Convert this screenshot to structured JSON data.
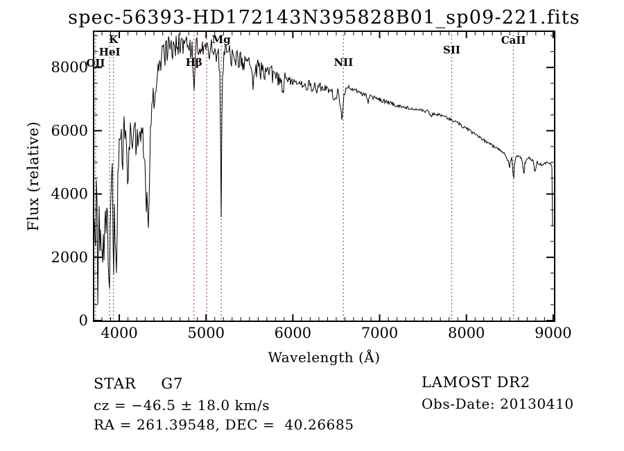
{
  "chart_data": {
    "type": "line",
    "title": "spec-56393-HD172143N395828B01_sp09-221.fits",
    "xlabel": "Wavelength (Å)",
    "ylabel": "Flux (relative)",
    "xlim": [
      3704,
      9017
    ],
    "ylim": [
      0,
      9145
    ],
    "x_ticks": [
      4000,
      5000,
      6000,
      7000,
      8000,
      9000
    ],
    "y_ticks": [
      0,
      2000,
      4000,
      6000,
      8000
    ],
    "x_minor_step": 100,
    "y_minor_step": 500,
    "grid": false,
    "legend": "none",
    "line_color": "#000000",
    "marker_line_color": "#993333",
    "spectral_lines": [
      {
        "label": "OII",
        "wavelength": 3727,
        "label_y": 92
      },
      {
        "label": "HeI",
        "wavelength": 3889,
        "label_y": 76
      },
      {
        "label": "K",
        "wavelength": 3933,
        "label_y": 58
      },
      {
        "label": "Hβ",
        "wavelength": 4861,
        "label_y": 91
      },
      {
        "label": "",
        "wavelength": 5007,
        "label_y": 0
      },
      {
        "label": "Mg",
        "wavelength": 5175,
        "label_y": 58
      },
      {
        "label": "NII",
        "wavelength": 6583,
        "label_y": 91
      },
      {
        "label": "SII",
        "wavelength": 7830,
        "label_y": 73
      },
      {
        "label": "CaII",
        "wavelength": 8542,
        "label_y": 59
      }
    ],
    "seed": 20130410,
    "envelope": [
      [
        3704,
        2200
      ],
      [
        3712,
        3800
      ],
      [
        3720,
        2600
      ],
      [
        3727,
        1200
      ],
      [
        3734,
        3900
      ],
      [
        3741,
        4600
      ],
      [
        3748,
        1800
      ],
      [
        3755,
        600
      ],
      [
        3762,
        2600
      ],
      [
        3770,
        3500
      ],
      [
        3778,
        2800
      ],
      [
        3786,
        2200
      ],
      [
        3794,
        3200
      ],
      [
        3802,
        2600
      ],
      [
        3810,
        2200
      ],
      [
        3818,
        3000
      ],
      [
        3826,
        1700
      ],
      [
        3834,
        2500
      ],
      [
        3842,
        3000
      ],
      [
        3850,
        2700
      ],
      [
        3858,
        3200
      ],
      [
        3866,
        2500
      ],
      [
        3874,
        1800
      ],
      [
        3882,
        1100
      ],
      [
        3889,
        800
      ],
      [
        3896,
        2400
      ],
      [
        3904,
        3300
      ],
      [
        3912,
        4000
      ],
      [
        3920,
        4400
      ],
      [
        3926,
        3200
      ],
      [
        3933,
        700
      ],
      [
        3940,
        2600
      ],
      [
        3948,
        3700
      ],
      [
        3955,
        2600
      ],
      [
        3962,
        1600
      ],
      [
        3968,
        900
      ],
      [
        3975,
        2600
      ],
      [
        3982,
        3900
      ],
      [
        3990,
        4700
      ],
      [
        4000,
        5400
      ],
      [
        4010,
        6000
      ],
      [
        4025,
        5600
      ],
      [
        4040,
        5100
      ],
      [
        4055,
        6200
      ],
      [
        4070,
        5800
      ],
      [
        4085,
        5200
      ],
      [
        4102,
        3900
      ],
      [
        4115,
        5500
      ],
      [
        4130,
        6100
      ],
      [
        4145,
        5400
      ],
      [
        4160,
        5900
      ],
      [
        4175,
        6200
      ],
      [
        4190,
        5600
      ],
      [
        4205,
        6000
      ],
      [
        4220,
        5500
      ],
      [
        4235,
        6100
      ],
      [
        4250,
        5700
      ],
      [
        4265,
        6200
      ],
      [
        4280,
        5300
      ],
      [
        4295,
        4700
      ],
      [
        4310,
        3700
      ],
      [
        4322,
        4400
      ],
      [
        4334,
        2800
      ],
      [
        4347,
        4600
      ],
      [
        4360,
        6000
      ],
      [
        4375,
        6800
      ],
      [
        4390,
        7100
      ],
      [
        4405,
        6700
      ],
      [
        4420,
        7200
      ],
      [
        4435,
        7600
      ],
      [
        4450,
        8000
      ],
      [
        4465,
        8300
      ],
      [
        4480,
        7900
      ],
      [
        4495,
        8400
      ],
      [
        4510,
        8600
      ],
      [
        4525,
        8200
      ],
      [
        4540,
        8700
      ],
      [
        4555,
        8400
      ],
      [
        4570,
        8800
      ],
      [
        4585,
        8500
      ],
      [
        4600,
        8900
      ],
      [
        4615,
        8400
      ],
      [
        4630,
        8800
      ],
      [
        4645,
        8600
      ],
      [
        4660,
        8950
      ],
      [
        4675,
        8600
      ],
      [
        4690,
        8900
      ],
      [
        4705,
        8700
      ],
      [
        4720,
        9000
      ],
      [
        4735,
        8700
      ],
      [
        4750,
        8900
      ],
      [
        4765,
        8600
      ],
      [
        4780,
        8850
      ],
      [
        4795,
        8500
      ],
      [
        4810,
        8800
      ],
      [
        4825,
        8400
      ],
      [
        4840,
        8600
      ],
      [
        4852,
        8000
      ],
      [
        4861,
        7000
      ],
      [
        4872,
        8100
      ],
      [
        4885,
        8600
      ],
      [
        4900,
        8800
      ],
      [
        4915,
        8400
      ],
      [
        4930,
        8700
      ],
      [
        4945,
        8500
      ],
      [
        4960,
        8750
      ],
      [
        4975,
        8500
      ],
      [
        4990,
        8800
      ],
      [
        5007,
        8500
      ],
      [
        5022,
        8800
      ],
      [
        5040,
        8400
      ],
      [
        5060,
        8700
      ],
      [
        5080,
        8300
      ],
      [
        5100,
        8600
      ],
      [
        5120,
        8100
      ],
      [
        5140,
        8450
      ],
      [
        5158,
        7800
      ],
      [
        5167,
        5500
      ],
      [
        5175,
        3000
      ],
      [
        5183,
        6800
      ],
      [
        5195,
        8000
      ],
      [
        5210,
        8400
      ],
      [
        5230,
        8600
      ],
      [
        5250,
        8300
      ],
      [
        5270,
        8550
      ],
      [
        5290,
        8250
      ],
      [
        5310,
        8500
      ],
      [
        5330,
        8150
      ],
      [
        5350,
        8400
      ],
      [
        5375,
        8100
      ],
      [
        5400,
        8350
      ],
      [
        5425,
        8000
      ],
      [
        5450,
        8250
      ],
      [
        5475,
        7950
      ],
      [
        5500,
        8300
      ],
      [
        5520,
        7900
      ],
      [
        5540,
        7400
      ],
      [
        5560,
        8100
      ],
      [
        5580,
        7800
      ],
      [
        5600,
        8150
      ],
      [
        5625,
        7850
      ],
      [
        5650,
        8050
      ],
      [
        5675,
        7750
      ],
      [
        5700,
        8000
      ],
      [
        5725,
        7700
      ],
      [
        5750,
        7950
      ],
      [
        5775,
        7600
      ],
      [
        5800,
        7850
      ],
      [
        5825,
        7550
      ],
      [
        5850,
        7750
      ],
      [
        5875,
        7450
      ],
      [
        5893,
        7100
      ],
      [
        5910,
        7650
      ],
      [
        5935,
        7500
      ],
      [
        5960,
        7650
      ],
      [
        5985,
        7500
      ],
      [
        6010,
        7620
      ],
      [
        6040,
        7480
      ],
      [
        6070,
        7600
      ],
      [
        6100,
        7450
      ],
      [
        6130,
        7550
      ],
      [
        6160,
        7400
      ],
      [
        6190,
        7500
      ],
      [
        6220,
        7350
      ],
      [
        6250,
        7450
      ],
      [
        6280,
        7300
      ],
      [
        6310,
        7420
      ],
      [
        6340,
        7280
      ],
      [
        6370,
        7380
      ],
      [
        6400,
        7250
      ],
      [
        6430,
        7350
      ],
      [
        6460,
        7150
      ],
      [
        6490,
        6950
      ],
      [
        6510,
        7250
      ],
      [
        6530,
        7150
      ],
      [
        6545,
        6900
      ],
      [
        6563,
        6300
      ],
      [
        6580,
        6900
      ],
      [
        6600,
        7300
      ],
      [
        6630,
        7400
      ],
      [
        6660,
        7350
      ],
      [
        6700,
        7300
      ],
      [
        6740,
        7250
      ],
      [
        6780,
        7200
      ],
      [
        6820,
        7150
      ],
      [
        6850,
        7100
      ],
      [
        6867,
        6900
      ],
      [
        6885,
        7080
      ],
      [
        6920,
        7050
      ],
      [
        6960,
        7010
      ],
      [
        7000,
        6980
      ],
      [
        7040,
        6950
      ],
      [
        7080,
        6920
      ],
      [
        7124,
        6880
      ],
      [
        7160,
        6840
      ],
      [
        7186,
        6700
      ],
      [
        7215,
        6800
      ],
      [
        7250,
        6780
      ],
      [
        7290,
        6750
      ],
      [
        7330,
        6720
      ],
      [
        7370,
        6700
      ],
      [
        7410,
        6680
      ],
      [
        7450,
        6660
      ],
      [
        7490,
        6640
      ],
      [
        7530,
        6620
      ],
      [
        7570,
        6590
      ],
      [
        7594,
        6450
      ],
      [
        7620,
        6550
      ],
      [
        7660,
        6520
      ],
      [
        7700,
        6480
      ],
      [
        7740,
        6440
      ],
      [
        7780,
        6400
      ],
      [
        7830,
        6340
      ],
      [
        7880,
        6270
      ],
      [
        7930,
        6190
      ],
      [
        7980,
        6100
      ],
      [
        8030,
        6010
      ],
      [
        8080,
        5920
      ],
      [
        8130,
        5830
      ],
      [
        8180,
        5740
      ],
      [
        8230,
        5650
      ],
      [
        8280,
        5560
      ],
      [
        8330,
        5470
      ],
      [
        8380,
        5390
      ],
      [
        8430,
        5290
      ],
      [
        8460,
        5200
      ],
      [
        8490,
        4950
      ],
      [
        8498,
        4800
      ],
      [
        8508,
        5080
      ],
      [
        8525,
        5150
      ],
      [
        8535,
        4800
      ],
      [
        8542,
        4250
      ],
      [
        8552,
        4900
      ],
      [
        8570,
        5150
      ],
      [
        8595,
        5200
      ],
      [
        8620,
        5150
      ],
      [
        8640,
        5100
      ],
      [
        8655,
        4850
      ],
      [
        8662,
        4530
      ],
      [
        8672,
        4950
      ],
      [
        8695,
        5100
      ],
      [
        8720,
        5150
      ],
      [
        8745,
        5100
      ],
      [
        8770,
        5050
      ],
      [
        8790,
        4650
      ],
      [
        8810,
        5000
      ],
      [
        8840,
        4950
      ],
      [
        8870,
        4920
      ],
      [
        8900,
        4960
      ],
      [
        8930,
        5000
      ],
      [
        8960,
        4980
      ],
      [
        8980,
        4940
      ],
      [
        8990,
        4870
      ],
      [
        8994,
        2400
      ],
      [
        8997,
        30
      ],
      [
        9017,
        20
      ]
    ],
    "noise_segments": [
      [
        3704,
        3995,
        850
      ],
      [
        3995,
        4360,
        420
      ],
      [
        4360,
        4760,
        300
      ],
      [
        4760,
        5910,
        270
      ],
      [
        5910,
        6620,
        140
      ],
      [
        6620,
        7200,
        70
      ],
      [
        7200,
        8380,
        50
      ],
      [
        8380,
        9000,
        45
      ],
      [
        9000,
        9018,
        10
      ]
    ]
  },
  "annotations": {
    "object_class": "STAR",
    "subclass": "G7",
    "survey": "LAMOST DR2",
    "cz_line": "cz = −46.5 ± 18.0 km/s",
    "obs_date_line": "Obs-Date: 20130410",
    "radec_line": "RA = 261.39548, DEC =  40.26685"
  }
}
